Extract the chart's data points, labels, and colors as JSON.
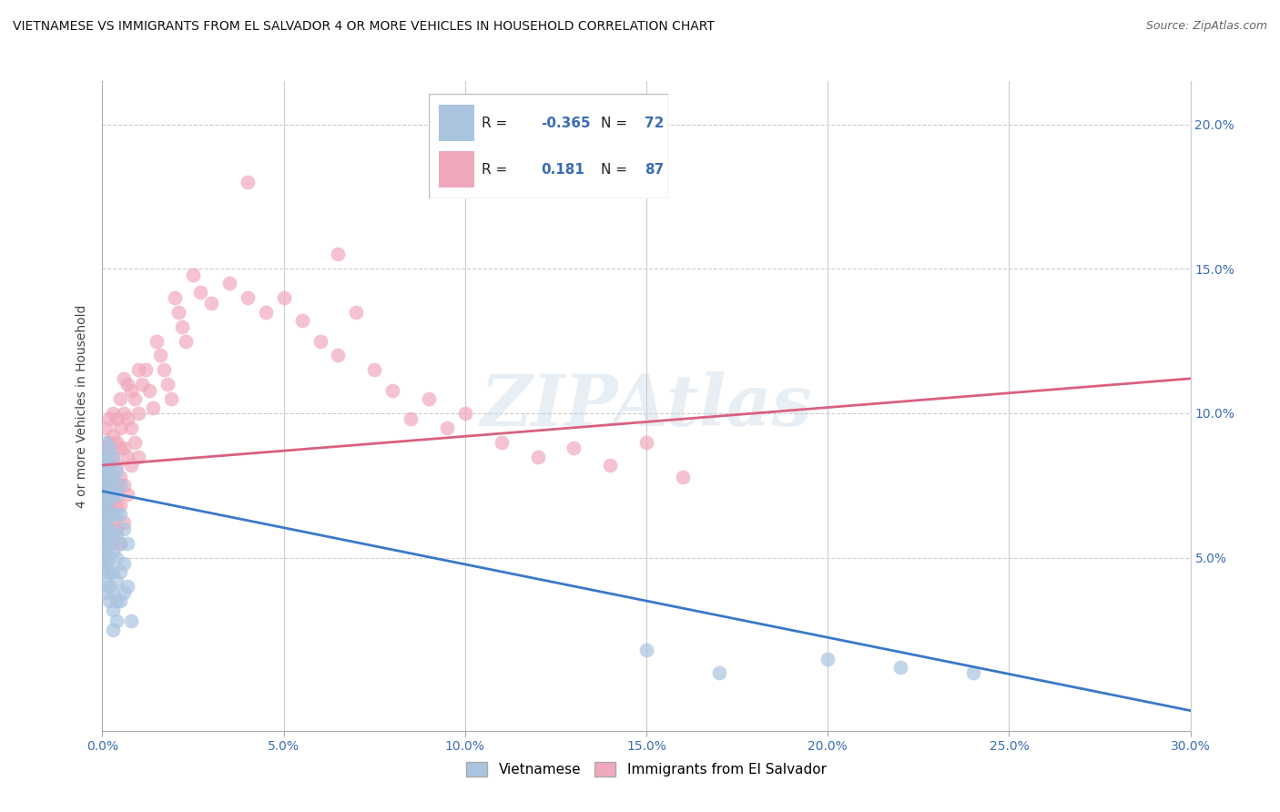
{
  "title": "VIETNAMESE VS IMMIGRANTS FROM EL SALVADOR 4 OR MORE VEHICLES IN HOUSEHOLD CORRELATION CHART",
  "source": "Source: ZipAtlas.com",
  "ylabel": "4 or more Vehicles in Household",
  "ylabel_right_ticks": [
    "20.0%",
    "15.0%",
    "10.0%",
    "5.0%"
  ],
  "ylabel_right_values": [
    0.2,
    0.15,
    0.1,
    0.05
  ],
  "xlim": [
    0.0,
    0.3
  ],
  "ylim": [
    -0.01,
    0.215
  ],
  "color_vietnamese": "#aac4e0",
  "color_elsalvador": "#f0a8bc",
  "color_line_vietnamese": "#3a78c9",
  "color_line_elsalvador": "#d96080",
  "watermark": "ZIPAtlas",
  "viet_line": [
    0.0,
    0.073,
    0.3,
    -0.003
  ],
  "salv_line": [
    0.0,
    0.082,
    0.3,
    0.112
  ],
  "vietnamese_scatter": [
    [
      0.0,
      0.085
    ],
    [
      0.0,
      0.082
    ],
    [
      0.0,
      0.08
    ],
    [
      0.0,
      0.078
    ],
    [
      0.0,
      0.075
    ],
    [
      0.0,
      0.072
    ],
    [
      0.0,
      0.07
    ],
    [
      0.0,
      0.068
    ],
    [
      0.0,
      0.065
    ],
    [
      0.0,
      0.062
    ],
    [
      0.0,
      0.06
    ],
    [
      0.0,
      0.058
    ],
    [
      0.0,
      0.055
    ],
    [
      0.0,
      0.052
    ],
    [
      0.0,
      0.05
    ],
    [
      0.0,
      0.048
    ],
    [
      0.001,
      0.09
    ],
    [
      0.001,
      0.085
    ],
    [
      0.001,
      0.082
    ],
    [
      0.001,
      0.078
    ],
    [
      0.001,
      0.075
    ],
    [
      0.001,
      0.072
    ],
    [
      0.001,
      0.068
    ],
    [
      0.001,
      0.065
    ],
    [
      0.001,
      0.062
    ],
    [
      0.001,
      0.058
    ],
    [
      0.001,
      0.055
    ],
    [
      0.001,
      0.052
    ],
    [
      0.001,
      0.048
    ],
    [
      0.001,
      0.045
    ],
    [
      0.001,
      0.042
    ],
    [
      0.001,
      0.038
    ],
    [
      0.002,
      0.088
    ],
    [
      0.002,
      0.082
    ],
    [
      0.002,
      0.078
    ],
    [
      0.002,
      0.075
    ],
    [
      0.002,
      0.07
    ],
    [
      0.002,
      0.065
    ],
    [
      0.002,
      0.06
    ],
    [
      0.002,
      0.055
    ],
    [
      0.002,
      0.05
    ],
    [
      0.002,
      0.045
    ],
    [
      0.002,
      0.04
    ],
    [
      0.002,
      0.035
    ],
    [
      0.003,
      0.085
    ],
    [
      0.003,
      0.078
    ],
    [
      0.003,
      0.072
    ],
    [
      0.003,
      0.065
    ],
    [
      0.003,
      0.058
    ],
    [
      0.003,
      0.052
    ],
    [
      0.003,
      0.045
    ],
    [
      0.003,
      0.038
    ],
    [
      0.003,
      0.032
    ],
    [
      0.003,
      0.025
    ],
    [
      0.004,
      0.08
    ],
    [
      0.004,
      0.072
    ],
    [
      0.004,
      0.065
    ],
    [
      0.004,
      0.058
    ],
    [
      0.004,
      0.05
    ],
    [
      0.004,
      0.042
    ],
    [
      0.004,
      0.035
    ],
    [
      0.004,
      0.028
    ],
    [
      0.005,
      0.075
    ],
    [
      0.005,
      0.065
    ],
    [
      0.005,
      0.055
    ],
    [
      0.005,
      0.045
    ],
    [
      0.005,
      0.035
    ],
    [
      0.006,
      0.06
    ],
    [
      0.006,
      0.048
    ],
    [
      0.006,
      0.038
    ],
    [
      0.007,
      0.055
    ],
    [
      0.007,
      0.04
    ],
    [
      0.008,
      0.028
    ],
    [
      0.15,
      0.018
    ],
    [
      0.17,
      0.01
    ],
    [
      0.2,
      0.015
    ],
    [
      0.22,
      0.012
    ],
    [
      0.24,
      0.01
    ]
  ],
  "elsalvador_scatter": [
    [
      0.0,
      0.088
    ],
    [
      0.0,
      0.082
    ],
    [
      0.001,
      0.095
    ],
    [
      0.001,
      0.088
    ],
    [
      0.001,
      0.082
    ],
    [
      0.001,
      0.075
    ],
    [
      0.001,
      0.068
    ],
    [
      0.002,
      0.098
    ],
    [
      0.002,
      0.09
    ],
    [
      0.002,
      0.082
    ],
    [
      0.002,
      0.075
    ],
    [
      0.002,
      0.068
    ],
    [
      0.002,
      0.06
    ],
    [
      0.003,
      0.1
    ],
    [
      0.003,
      0.092
    ],
    [
      0.003,
      0.085
    ],
    [
      0.003,
      0.078
    ],
    [
      0.003,
      0.07
    ],
    [
      0.003,
      0.062
    ],
    [
      0.003,
      0.055
    ],
    [
      0.004,
      0.098
    ],
    [
      0.004,
      0.09
    ],
    [
      0.004,
      0.082
    ],
    [
      0.004,
      0.075
    ],
    [
      0.004,
      0.068
    ],
    [
      0.004,
      0.06
    ],
    [
      0.005,
      0.105
    ],
    [
      0.005,
      0.095
    ],
    [
      0.005,
      0.088
    ],
    [
      0.005,
      0.078
    ],
    [
      0.005,
      0.068
    ],
    [
      0.005,
      0.055
    ],
    [
      0.006,
      0.112
    ],
    [
      0.006,
      0.1
    ],
    [
      0.006,
      0.088
    ],
    [
      0.006,
      0.075
    ],
    [
      0.006,
      0.062
    ],
    [
      0.007,
      0.11
    ],
    [
      0.007,
      0.098
    ],
    [
      0.007,
      0.085
    ],
    [
      0.007,
      0.072
    ],
    [
      0.008,
      0.108
    ],
    [
      0.008,
      0.095
    ],
    [
      0.008,
      0.082
    ],
    [
      0.009,
      0.105
    ],
    [
      0.009,
      0.09
    ],
    [
      0.01,
      0.115
    ],
    [
      0.01,
      0.1
    ],
    [
      0.01,
      0.085
    ],
    [
      0.011,
      0.11
    ],
    [
      0.012,
      0.115
    ],
    [
      0.013,
      0.108
    ],
    [
      0.014,
      0.102
    ],
    [
      0.015,
      0.125
    ],
    [
      0.016,
      0.12
    ],
    [
      0.017,
      0.115
    ],
    [
      0.018,
      0.11
    ],
    [
      0.019,
      0.105
    ],
    [
      0.02,
      0.14
    ],
    [
      0.021,
      0.135
    ],
    [
      0.022,
      0.13
    ],
    [
      0.023,
      0.125
    ],
    [
      0.025,
      0.148
    ],
    [
      0.027,
      0.142
    ],
    [
      0.03,
      0.138
    ],
    [
      0.035,
      0.145
    ],
    [
      0.04,
      0.14
    ],
    [
      0.045,
      0.135
    ],
    [
      0.05,
      0.14
    ],
    [
      0.055,
      0.132
    ],
    [
      0.06,
      0.125
    ],
    [
      0.065,
      0.12
    ],
    [
      0.07,
      0.135
    ],
    [
      0.075,
      0.115
    ],
    [
      0.08,
      0.108
    ],
    [
      0.085,
      0.098
    ],
    [
      0.09,
      0.105
    ],
    [
      0.095,
      0.095
    ],
    [
      0.1,
      0.1
    ],
    [
      0.11,
      0.09
    ],
    [
      0.12,
      0.085
    ],
    [
      0.13,
      0.088
    ],
    [
      0.14,
      0.082
    ],
    [
      0.15,
      0.09
    ],
    [
      0.16,
      0.078
    ],
    [
      0.04,
      0.18
    ],
    [
      0.065,
      0.155
    ]
  ]
}
